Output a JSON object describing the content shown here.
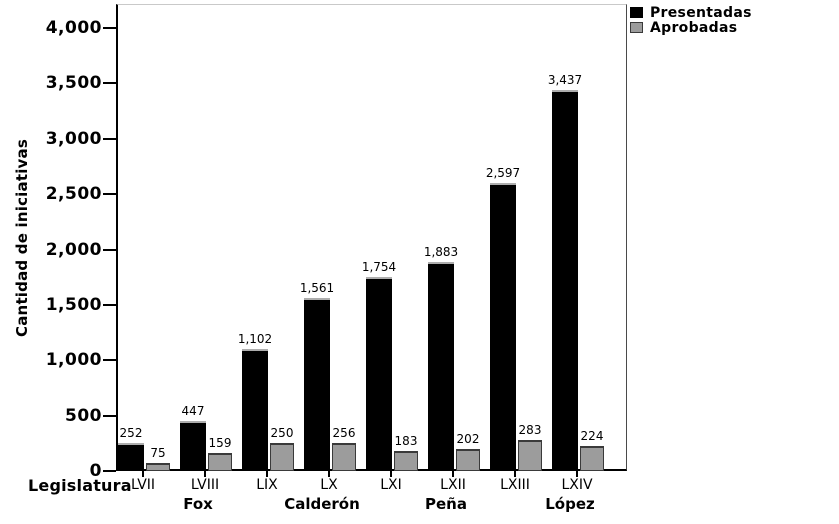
{
  "axes": {
    "y_title": "Cantidad de iniciativas",
    "x_title": "Legislatura"
  },
  "legend": {
    "items": [
      {
        "label": "Presentadas",
        "color": "#000000"
      },
      {
        "label": "Aprobadas",
        "color": "#9c9c9c"
      }
    ]
  },
  "chart_data": {
    "type": "bar",
    "title": "",
    "xlabel": "Legislatura",
    "ylabel": "Cantidad de iniciativas",
    "categories": [
      "LVII",
      "LVIII",
      "LIX",
      "LX",
      "LXI",
      "LXII",
      "LXIII",
      "LXIV"
    ],
    "series": [
      {
        "name": "Presentadas",
        "color": "#000000",
        "values": [
          252,
          447,
          1102,
          1561,
          1754,
          1883,
          2597,
          3437
        ]
      },
      {
        "name": "Aprobadas",
        "color": "#9c9c9c",
        "values": [
          75,
          159,
          250,
          256,
          183,
          202,
          283,
          224
        ]
      }
    ],
    "group_labels": [
      {
        "label": "Fox",
        "category_index": 1
      },
      {
        "label": "Calderón",
        "category_index": 3
      },
      {
        "label": "Peña",
        "category_index": 5
      },
      {
        "label": "López",
        "category_index": 7
      }
    ],
    "yticks": [
      0,
      500,
      1000,
      1500,
      2000,
      2500,
      3000,
      3500,
      4000
    ],
    "ylim": [
      0,
      4216
    ],
    "grid": false,
    "legend_position": "top-right",
    "bar_value_labels": true
  }
}
